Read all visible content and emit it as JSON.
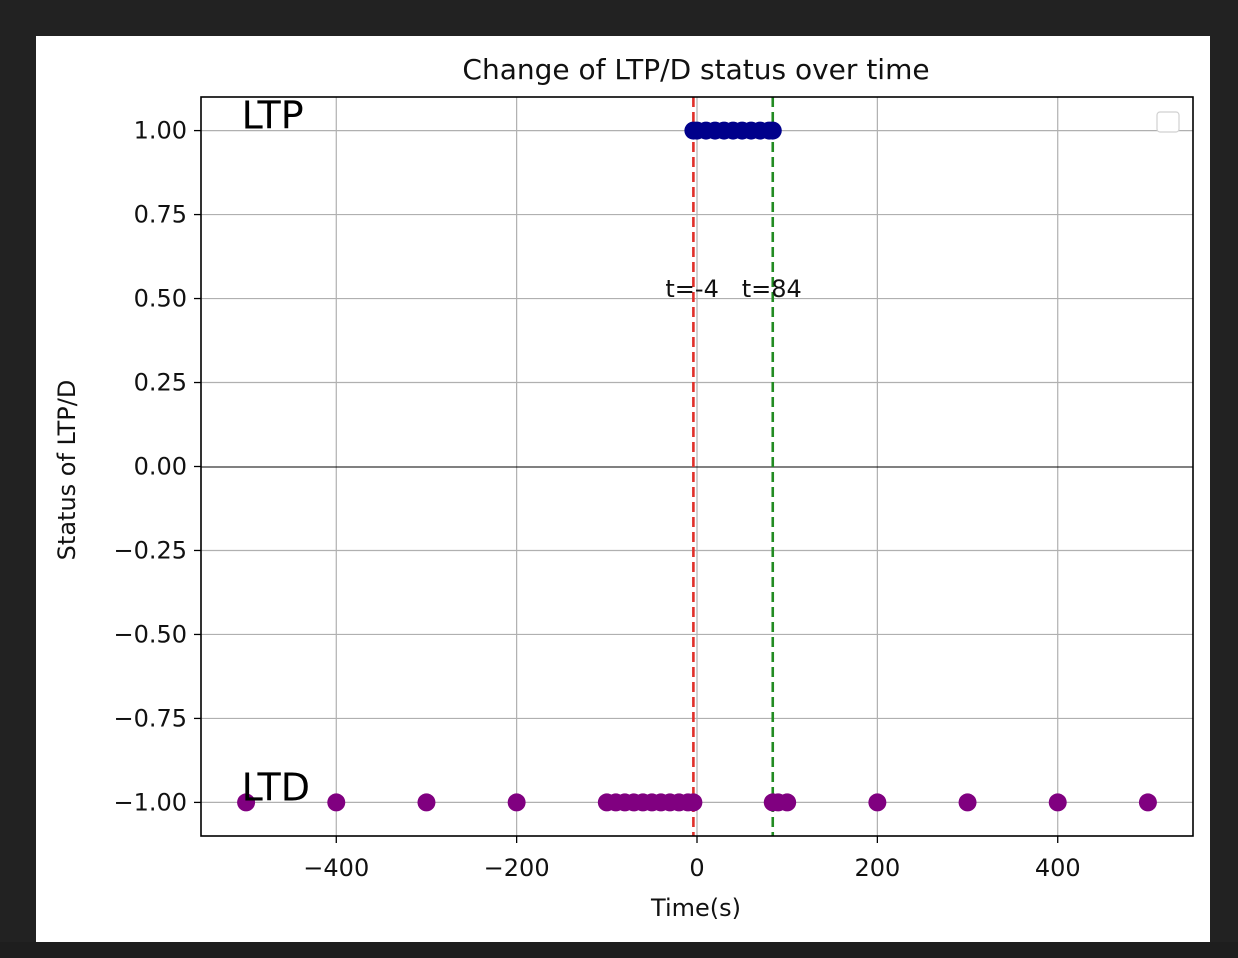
{
  "chart_data": {
    "type": "scatter",
    "title": "Change of LTP/D status over time",
    "xlabel": "Time(s)",
    "ylabel": "Status of LTP/D",
    "xlim": [
      -550,
      550
    ],
    "ylim": [
      -1.1,
      1.1
    ],
    "grid": true,
    "legend": "top-right",
    "x_ticks": [
      -400,
      -200,
      0,
      200,
      400
    ],
    "x_tick_labels": [
      "−400",
      "−200",
      "0",
      "200",
      "400"
    ],
    "y_ticks": [
      1.0,
      0.75,
      0.5,
      0.25,
      0.0,
      -0.25,
      -0.5,
      -0.75,
      -1.0
    ],
    "y_tick_labels": [
      "1.00",
      "0.75",
      "0.50",
      "0.25",
      "0.00",
      "−0.25",
      "−0.50",
      "−0.75",
      "−1.00"
    ],
    "series": [
      {
        "color": "#00008b",
        "x": [
          -4,
          0,
          10,
          20,
          30,
          40,
          50,
          60,
          70,
          80,
          84
        ],
        "y": [
          1,
          1,
          1,
          1,
          1,
          1,
          1,
          1,
          1,
          1,
          1
        ]
      },
      {
        "color": "#800080",
        "x": [
          -500,
          -400,
          -300,
          -200,
          -100,
          -90,
          -80,
          -70,
          -60,
          -50,
          -40,
          -30,
          -20,
          -10,
          -4,
          84,
          90,
          100,
          200,
          300,
          400,
          500
        ],
        "y": [
          -1,
          -1,
          -1,
          -1,
          -1,
          -1,
          -1,
          -1,
          -1,
          -1,
          -1,
          -1,
          -1,
          -1,
          -1,
          -1,
          -1,
          -1,
          -1,
          -1,
          -1,
          -1
        ]
      }
    ],
    "reference_lines": [
      {
        "x": -4,
        "color": "#e0302a",
        "label": "t=-4"
      },
      {
        "x": 84,
        "color": "#228b22",
        "label": "t=84"
      }
    ],
    "annotations": [
      {
        "text": "LTP",
        "x": -505,
        "y": 1.0
      },
      {
        "text": "LTD",
        "x": -505,
        "y": -1.0
      }
    ]
  }
}
